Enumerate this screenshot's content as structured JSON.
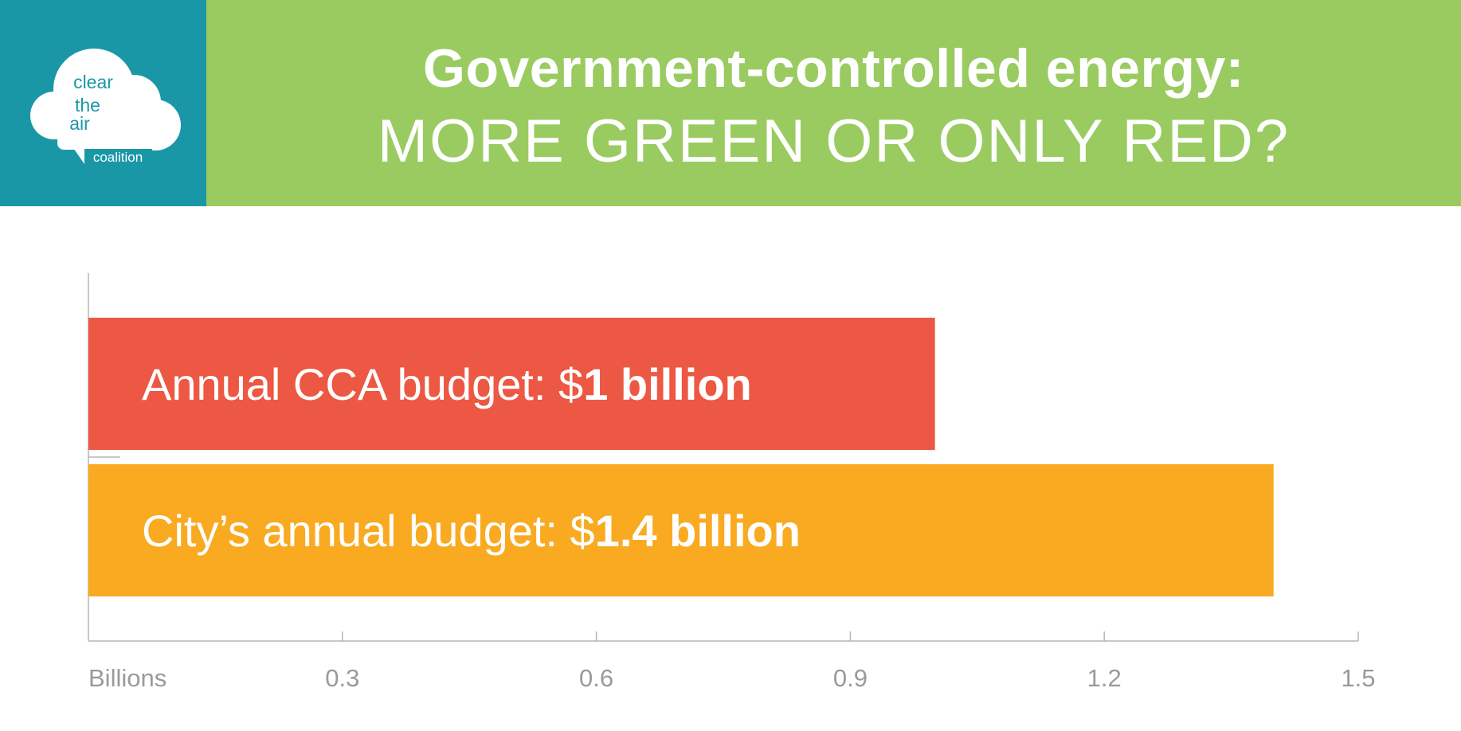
{
  "logo": {
    "words": [
      "clear",
      "the",
      "air"
    ],
    "sub": "coalition"
  },
  "header": {
    "title": "Government-controlled energy:",
    "subtitle": "MORE GREEN OR ONLY RED?"
  },
  "colors": {
    "header_bg": "#9acb61",
    "logo_bg": "#1a97a7",
    "cca_bar": "#ec5843",
    "city_bar": "#f9aa21",
    "axis": "#b5b5b5",
    "tick_text": "#9a9a9a"
  },
  "chart_data": {
    "type": "bar",
    "orientation": "horizontal",
    "title": "Government-controlled energy: MORE GREEN OR ONLY RED?",
    "categories": [
      "Annual CCA budget",
      "City's annual budget"
    ],
    "values": [
      1.0,
      1.4
    ],
    "bar_labels": [
      {
        "prefix": "Annual CCA budget: $",
        "bold": "1 billion"
      },
      {
        "prefix": "City’s annual budget: $",
        "bold": "1.4 billion"
      }
    ],
    "bar_colors": [
      "#ec5843",
      "#f9aa21"
    ],
    "xlabel": "Billions",
    "xlim": [
      0,
      1.5
    ],
    "xticks": [
      0.3,
      0.6,
      0.9,
      1.2,
      1.5
    ],
    "xtick_labels": [
      "0.3",
      "0.6",
      "0.9",
      "1.2",
      "1.5"
    ],
    "grid": false,
    "legend": "none"
  }
}
